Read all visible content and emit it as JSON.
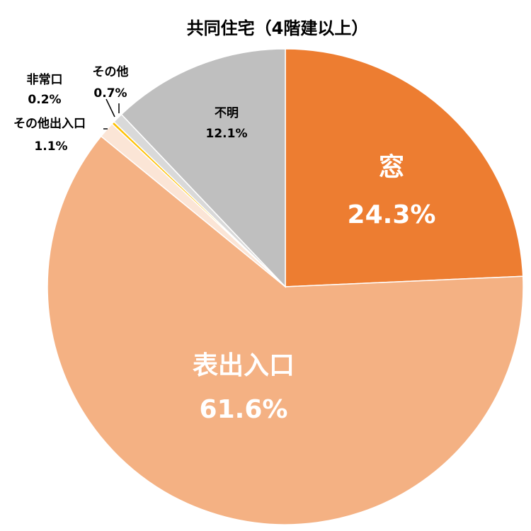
{
  "chart_data": {
    "type": "pie",
    "title": "共同住宅（4階建以上）",
    "start_angle_deg": 0,
    "direction": "clockwise",
    "slices": [
      {
        "label": "窓",
        "value": 24.3,
        "value_text": "24.3%",
        "color": "#ED7D31"
      },
      {
        "label": "表出入口",
        "value": 61.6,
        "value_text": "61.6%",
        "color": "#F4B183"
      },
      {
        "label": "その他出入口",
        "value": 1.1,
        "value_text": "1.1%",
        "color": "#FBE5D6"
      },
      {
        "label": "非常口",
        "value": 0.2,
        "value_text": "0.2%",
        "color": "#FFC000"
      },
      {
        "label": "その他",
        "value": 0.7,
        "value_text": "0.7%",
        "color": "#D9D9D9"
      },
      {
        "label": "不明",
        "value": 12.1,
        "value_text": "12.1%",
        "color": "#BFBFBF"
      }
    ]
  }
}
